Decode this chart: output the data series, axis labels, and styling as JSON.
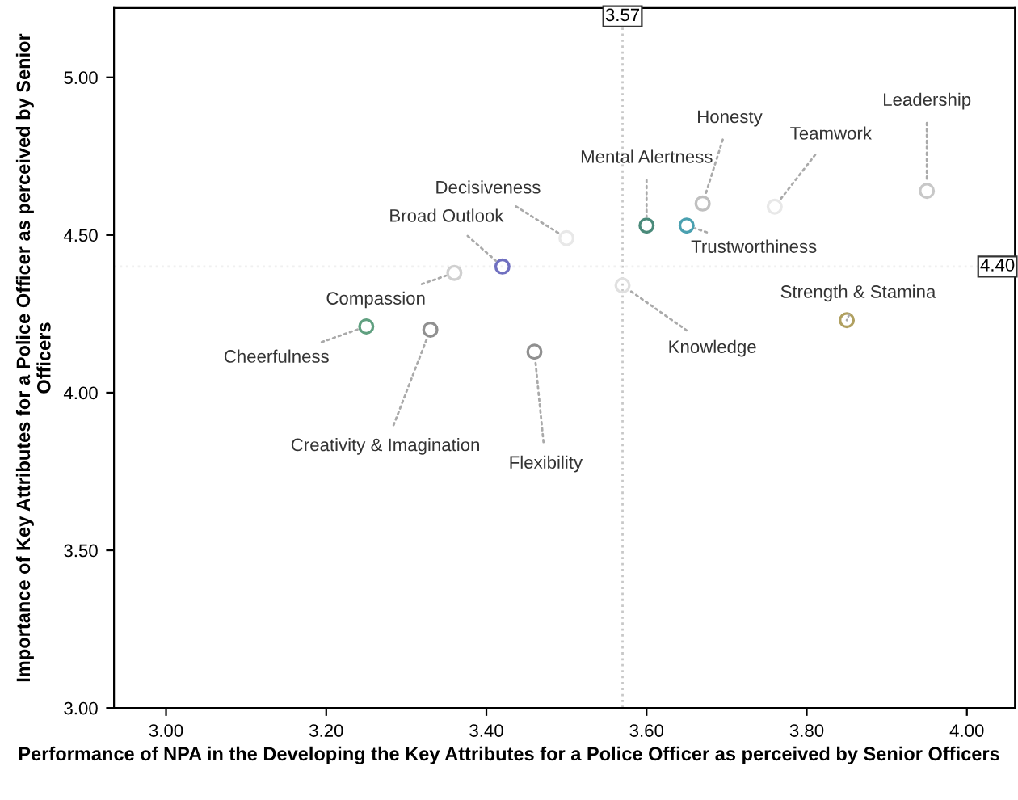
{
  "chart_data": {
    "type": "scatter",
    "xlabel": "Performance of NPA in the Developing the Key Attributes for a Police Officer as perceived by Senior Officers",
    "ylabel": "Importance of Key Attributes for a Police Officer as perceived by Senior Officers",
    "x": [
      3.95,
      3.76,
      3.67,
      3.6,
      3.65,
      3.5,
      3.42,
      3.36,
      3.25,
      3.33,
      3.46,
      3.57,
      3.85
    ],
    "values": [
      4.64,
      4.59,
      4.6,
      4.53,
      4.53,
      4.49,
      4.4,
      4.38,
      4.21,
      4.2,
      4.13,
      4.34,
      4.23
    ],
    "colors": [
      "#c8c8c8",
      "#e8e8e8",
      "#c0c0c0",
      "#4a8a7a",
      "#4aa0b0",
      "#e8e8e8",
      "#7070c0",
      "#d0d0d0",
      "#60a080",
      "#909090",
      "#909090",
      "#e0e0e0",
      "#b0a060"
    ],
    "marker": "circle",
    "grid": false,
    "legend": false,
    "xlim": [
      2.935,
      4.06
    ],
    "ylim": [
      3.0,
      5.22
    ],
    "xticks": [
      {
        "value": 3.0,
        "label": "3.00"
      },
      {
        "value": 3.2,
        "label": "3.20"
      },
      {
        "value": 3.4,
        "label": "3.40"
      },
      {
        "value": 3.6,
        "label": "3.60"
      },
      {
        "value": 3.8,
        "label": "3.80"
      },
      {
        "value": 4.0,
        "label": "4.00"
      }
    ],
    "yticks": [
      {
        "value": 3.0,
        "label": "3.00"
      },
      {
        "value": 3.5,
        "label": "3.50"
      },
      {
        "value": 4.0,
        "label": "4.00"
      },
      {
        "value": 4.5,
        "label": "4.50"
      },
      {
        "value": 5.0,
        "label": "5.00"
      }
    ],
    "ref_lines": [
      {
        "axis": "x",
        "value": 3.57,
        "label": "3.57",
        "color": "#c8c8c8",
        "line_style": "dotted"
      },
      {
        "axis": "y",
        "value": 4.4,
        "label": "4.40",
        "color": "#f0f0f0",
        "line_style": "dotted"
      }
    ],
    "annotations": [
      {
        "text": "Leadership",
        "x": 3.95,
        "y": 4.64
      },
      {
        "text": "Teamwork",
        "x": 3.76,
        "y": 4.59
      },
      {
        "text": "Honesty",
        "x": 3.67,
        "y": 4.6
      },
      {
        "text": "Mental Alertness",
        "x": 3.6,
        "y": 4.53
      },
      {
        "text": "Trustworthiness",
        "x": 3.65,
        "y": 4.53
      },
      {
        "text": "Decisiveness",
        "x": 3.5,
        "y": 4.49
      },
      {
        "text": "Broad Outlook",
        "x": 3.42,
        "y": 4.4
      },
      {
        "text": "Compassion",
        "x": 3.36,
        "y": 4.38
      },
      {
        "text": "Cheerfulness",
        "x": 3.25,
        "y": 4.21
      },
      {
        "text": "Creativity & Imagination",
        "x": 3.33,
        "y": 4.2
      },
      {
        "text": "Flexibility",
        "x": 3.46,
        "y": 4.13
      },
      {
        "text": "Knowledge",
        "x": 3.57,
        "y": 4.34
      },
      {
        "text": "Strength & Stamina",
        "x": 3.85,
        "y": 4.23
      }
    ]
  }
}
